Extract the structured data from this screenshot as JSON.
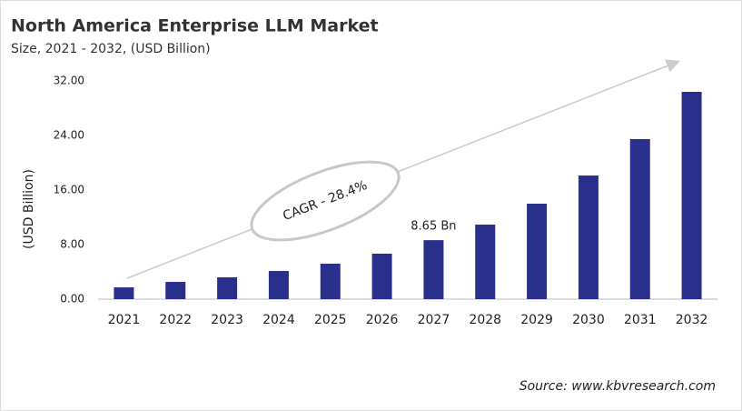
{
  "chart_data": {
    "type": "bar",
    "title": "North America Enterprise LLM Market",
    "subtitle": "Size, 2021 - 2032, (USD Billion)",
    "y_label": "(USD Billion)",
    "annotation": "CAGR - 28.4%",
    "source": "Source: www.kbvresearch.com",
    "categories": [
      "2021",
      "2022",
      "2023",
      "2024",
      "2025",
      "2026",
      "2027",
      "2028",
      "2029",
      "2030",
      "2031",
      "2032"
    ],
    "values": [
      1.73,
      2.53,
      3.2,
      4.13,
      5.2,
      6.67,
      8.65,
      10.93,
      14.0,
      18.13,
      23.47,
      30.4
    ],
    "value_labels": [
      null,
      null,
      null,
      null,
      null,
      null,
      "8.65 Bn",
      null,
      null,
      null,
      null,
      null
    ],
    "color": "#2b2f8c",
    "ylim": [
      0,
      32
    ],
    "yticks": [
      {
        "value": 0,
        "label": "0.00"
      },
      {
        "value": 8,
        "label": "8.00"
      },
      {
        "value": 16,
        "label": "16.00"
      },
      {
        "value": 24,
        "label": "24.00"
      },
      {
        "value": 32,
        "label": "32.00"
      }
    ],
    "grid": false
  }
}
